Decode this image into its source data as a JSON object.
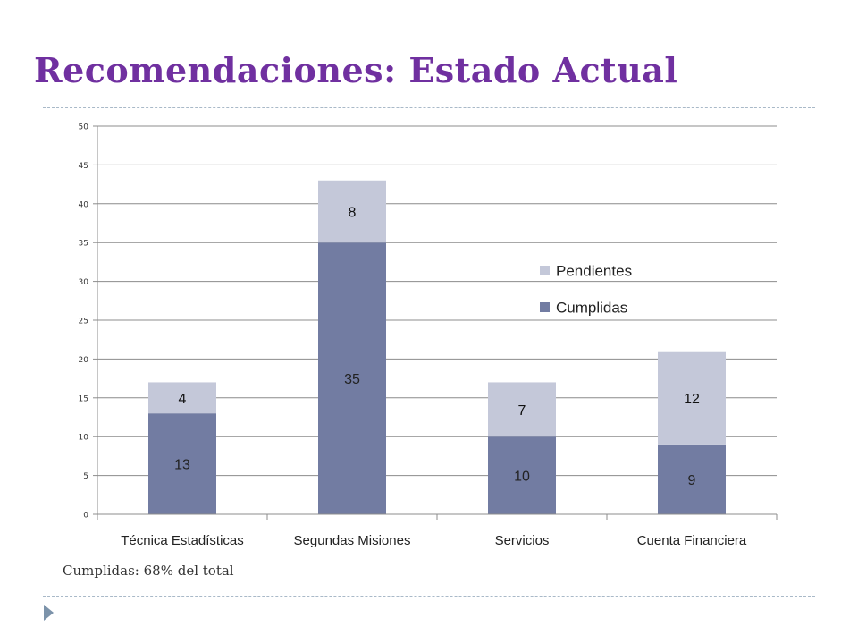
{
  "slide": {
    "title": "Recomendaciones: Estado Actual",
    "caption": "Cumplidas: 68% del total",
    "title_color": "#7030a0"
  },
  "chart_data": {
    "type": "bar",
    "stacked": true,
    "title": "",
    "xlabel": "",
    "ylabel": "",
    "categories": [
      "Técnica Estadísticas",
      "Segundas Misiones",
      "Servicios",
      "Cuenta Financiera"
    ],
    "series": [
      {
        "name": "Cumplidas",
        "values": [
          13,
          35,
          10,
          9
        ],
        "color": "#727ca2",
        "label_color": "#222222"
      },
      {
        "name": "Pendientes",
        "values": [
          4,
          8,
          7,
          12
        ],
        "color": "#c4c8d9",
        "label_color": "#111111"
      }
    ],
    "ylim": [
      0,
      50
    ],
    "yticks": [
      0,
      5,
      10,
      15,
      20,
      25,
      30,
      35,
      40,
      45,
      50
    ],
    "grid": true,
    "legend": "right-middle"
  }
}
